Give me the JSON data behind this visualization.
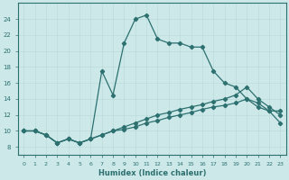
{
  "xlabel": "Humidex (Indice chaleur)",
  "bg_color": "#cce8e8",
  "line_color": "#2d7070",
  "xlim": [
    -0.5,
    23.5
  ],
  "ylim": [
    7,
    26
  ],
  "xticks": [
    0,
    1,
    2,
    3,
    4,
    5,
    6,
    7,
    8,
    9,
    10,
    11,
    12,
    13,
    14,
    15,
    16,
    17,
    18,
    19,
    20,
    21,
    22,
    23
  ],
  "yticks": [
    8,
    10,
    12,
    14,
    16,
    18,
    20,
    22,
    24
  ],
  "series0_x": [
    0,
    1,
    2,
    3,
    4,
    5,
    6,
    7,
    8,
    9,
    10,
    11,
    12,
    13,
    14,
    15,
    16,
    17,
    18,
    19,
    20,
    21,
    22,
    23
  ],
  "series0_y": [
    10,
    10,
    9.5,
    8.5,
    9,
    8.5,
    9,
    17.5,
    14.5,
    21,
    24,
    24.5,
    21.5,
    21,
    21,
    20.5,
    20.5,
    17.5,
    16,
    15.5,
    14,
    13.5,
    12.5,
    11
  ],
  "series1_x": [
    0,
    1,
    2,
    3,
    4,
    5,
    6,
    7,
    8,
    9,
    10,
    11,
    12,
    13,
    14,
    15,
    16,
    17,
    18,
    19,
    20,
    21,
    22,
    23
  ],
  "series1_y": [
    10,
    10,
    9.5,
    8.5,
    9,
    8.5,
    9,
    9.5,
    10,
    10.5,
    11,
    11.5,
    12,
    12.3,
    12.7,
    13,
    13.3,
    13.7,
    14,
    14.5,
    15.5,
    14,
    13,
    12
  ],
  "series2_x": [
    0,
    1,
    2,
    3,
    4,
    5,
    6,
    7,
    8,
    9,
    10,
    11,
    12,
    13,
    14,
    15,
    16,
    17,
    18,
    19,
    20,
    21,
    22,
    23
  ],
  "series2_y": [
    10,
    10,
    9.5,
    8.5,
    9,
    8.5,
    9,
    9.5,
    10,
    10.2,
    10.5,
    11,
    11.3,
    11.7,
    12,
    12.3,
    12.7,
    13,
    13.2,
    13.5,
    14,
    13,
    12.5,
    12.5
  ]
}
